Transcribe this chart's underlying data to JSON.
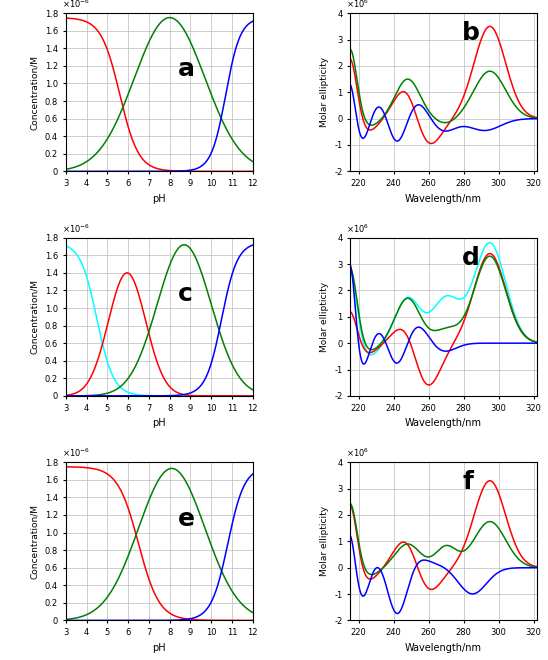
{
  "panel_labels": [
    "a",
    "b",
    "c",
    "d",
    "e",
    "f"
  ],
  "panel_label_fontsize": 18,
  "panel_label_fontweight": "bold",
  "background_color": "#ffffff",
  "grid_color": "#bbbbbb",
  "conc_ylim": [
    0,
    1.8e-06
  ],
  "conc_ylabel": "Concentration/M",
  "conc_xlabel": "pH",
  "conc_xlim": [
    3,
    12
  ],
  "conc_xticks": [
    3,
    4,
    5,
    6,
    7,
    8,
    9,
    10,
    11,
    12
  ],
  "spec_ylim": [
    -2000000.0,
    4000000.0
  ],
  "spec_ylabel": "Molar ellipticity",
  "spec_xlabel": "Wavelength/nm",
  "spec_xlim": [
    215,
    322
  ],
  "spec_xticks": [
    220,
    240,
    260,
    280,
    300,
    320
  ]
}
